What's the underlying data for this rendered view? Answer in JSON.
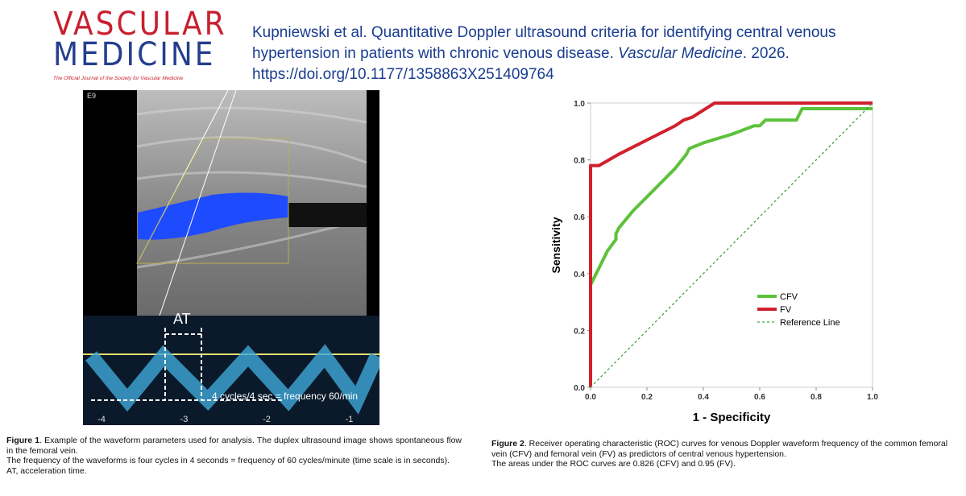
{
  "header": {
    "logo_line1": "VASCULAR",
    "logo_line2": "MEDICINE",
    "logo_tagline": "The Official Journal of the Society for Vascular Medicine",
    "citation": {
      "text": "Kupniewski et al. Quantitative Doppler ultrasound criteria for identifying central venous hypertension in patients with chronic venous disease.",
      "journal": "Vascular Medicine",
      "year": ". 2026.",
      "doi": "https://doi.org/10.1177/1358863X251409764"
    }
  },
  "figure1": {
    "probe_label": "E9",
    "at_label": "AT",
    "frequency_label": "4 cycles/4 sec = frequency 60/min",
    "time_labels": [
      "-4",
      "-3",
      "-2",
      "-1"
    ],
    "caption": {
      "label": "Figure 1",
      "text": ". Example of the waveform parameters used for analysis. The duplex ultrasound image shows spontaneous flow in the femoral vein.",
      "line2": "The frequency of the waveforms is four cycles in 4 seconds = frequency of 60 cycles/minute (time scale is in seconds).",
      "line3": "AT, acceleration time."
    }
  },
  "figure2": {
    "caption": {
      "label": "Figure 2",
      "text": ". Receiver operating characteristic (ROC) curves for venous Doppler waveform frequency of the common femoral vein (CFV) and femoral vein (FV) as predictors of central venous hypertension.",
      "line2": "The areas under the ROC curves are 0.826 (CFV) and 0.95 (FV)."
    }
  },
  "chart_data": {
    "type": "line",
    "x_label": "1 - Specificity",
    "y_label": "Sensitivity",
    "legend": "lower right",
    "xlim": [
      0,
      1
    ],
    "ylim": [
      0,
      1
    ],
    "xticks": [
      {
        "value": 0,
        "label": "0.0"
      },
      0.2,
      0.4,
      0.6,
      0.8,
      {
        "value": 1,
        "label": "1.0"
      }
    ],
    "yticks": [
      {
        "value": 0,
        "label": "0.0"
      },
      0.2,
      0.4,
      0.6,
      0.8,
      {
        "value": 1,
        "label": "1.0"
      }
    ],
    "series": [
      {
        "name": "CFV",
        "color": "#5cc23a",
        "style": "solid",
        "x": [
          0,
          0.03,
          0.06,
          0.09,
          0.09,
          0.1,
          0.15,
          0.2,
          0.3,
          0.34,
          0.35,
          0.4,
          0.5,
          0.58,
          0.6,
          0.62,
          0.73,
          0.75,
          1
        ],
        "values": [
          0.36,
          0.42,
          0.48,
          0.52,
          0.54,
          0.56,
          0.62,
          0.67,
          0.77,
          0.82,
          0.84,
          0.86,
          0.89,
          0.92,
          0.92,
          0.94,
          0.94,
          0.98,
          0.98
        ]
      },
      {
        "name": "FV",
        "color": "#d0202e",
        "style": "solid",
        "x": [
          0,
          0,
          0.03,
          0.1,
          0.2,
          0.3,
          0.33,
          0.36,
          0.44,
          1
        ],
        "values": [
          0,
          0.78,
          0.78,
          0.82,
          0.87,
          0.92,
          0.94,
          0.95,
          1,
          1
        ]
      },
      {
        "name": "Reference Line",
        "color": "#3aa63a",
        "style": "dashed",
        "x": [
          0,
          1
        ],
        "values": [
          0,
          1
        ]
      }
    ]
  }
}
